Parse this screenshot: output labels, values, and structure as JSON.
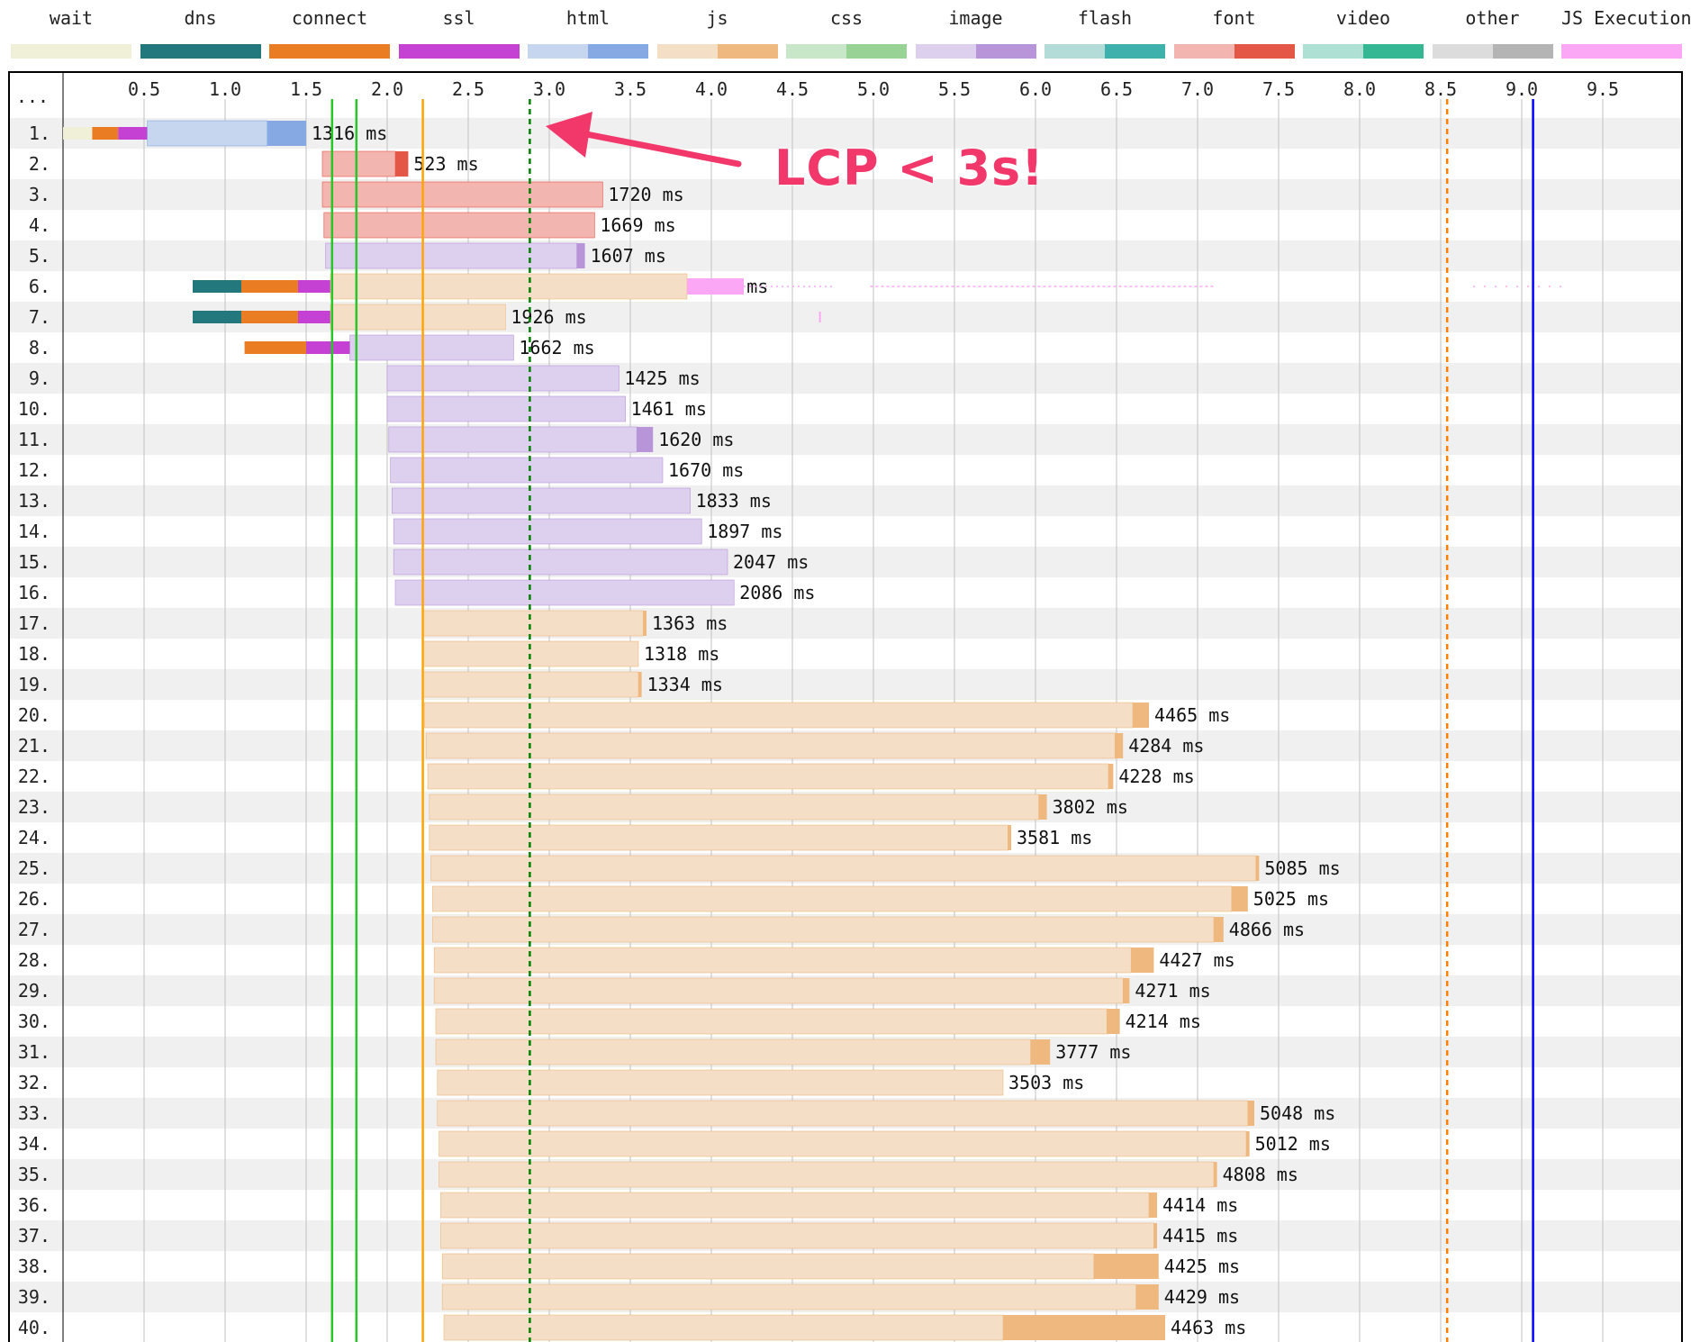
{
  "legend": [
    {
      "name": "wait",
      "colors": [
        "#f0efd8",
        "#f0efd8"
      ]
    },
    {
      "name": "dns",
      "colors": [
        "#23787e",
        "#23787e"
      ]
    },
    {
      "name": "connect",
      "colors": [
        "#ea7d24",
        "#ea7d24"
      ]
    },
    {
      "name": "ssl",
      "colors": [
        "#c441d4",
        "#c441d4"
      ]
    },
    {
      "name": "html",
      "colors": [
        "#c6d6ee",
        "#86a9e4"
      ]
    },
    {
      "name": "js",
      "colors": [
        "#f4dec6",
        "#eeb87e"
      ]
    },
    {
      "name": "css",
      "colors": [
        "#c8e7c8",
        "#98d295"
      ]
    },
    {
      "name": "image",
      "colors": [
        "#ddd0ef",
        "#b795d8"
      ]
    },
    {
      "name": "flash",
      "colors": [
        "#b3dcd9",
        "#3fb1ac"
      ]
    },
    {
      "name": "font",
      "colors": [
        "#f2b5b0",
        "#e45747"
      ]
    },
    {
      "name": "video",
      "colors": [
        "#aee0d4",
        "#35b794"
      ]
    },
    {
      "name": "other",
      "colors": [
        "#dcdcdc",
        "#b4b4b4"
      ]
    },
    {
      "name": "JS Execution",
      "colors": [
        "#fca6f6",
        "#fca6f6"
      ]
    }
  ],
  "annotation": {
    "text": "LCP < 3s!",
    "color": "#f2386b"
  },
  "chart_data": {
    "type": "waterfall",
    "x_unit": "s",
    "xlim": [
      0,
      10
    ],
    "x_ticks": [
      "0.5",
      "1.0",
      "1.5",
      "2.0",
      "2.5",
      "3.0",
      "3.5",
      "4.0",
      "4.5",
      "5.0",
      "5.5",
      "6.0",
      "6.5",
      "7.0",
      "7.5",
      "8.0",
      "8.5",
      "9.0",
      "9.5"
    ],
    "header_label": "...",
    "grid": true,
    "markers": [
      {
        "time": 1.66,
        "color": "#28c728",
        "style": "solid"
      },
      {
        "time": 1.81,
        "color": "#28c728",
        "style": "solid"
      },
      {
        "time": 2.22,
        "color": "#ffa500",
        "style": "solid"
      },
      {
        "time": 2.88,
        "color": "#008000",
        "style": "dashed"
      },
      {
        "time": 8.54,
        "color": "#ff8000",
        "style": "dashed"
      },
      {
        "time": 9.07,
        "color": "#0000ff",
        "style": "solid"
      }
    ],
    "requests": [
      {
        "row": "1.",
        "type": "html",
        "start": 0.0,
        "phases": {
          "wait": 0.18,
          "connect": 0.16,
          "ssl": 0.18
        },
        "dl": 0.24,
        "end": 1.5,
        "label": "1316 ms"
      },
      {
        "row": "2.",
        "type": "font",
        "start": 1.6,
        "end": 2.13,
        "dl": 0.08,
        "label": "523 ms"
      },
      {
        "row": "3.",
        "type": "font",
        "start": 1.6,
        "end": 3.33,
        "label": "1720 ms"
      },
      {
        "row": "4.",
        "type": "font",
        "start": 1.61,
        "end": 3.28,
        "label": "1669 ms"
      },
      {
        "row": "5.",
        "type": "image",
        "start": 1.62,
        "end": 3.22,
        "dl": 0.05,
        "label": "1607 ms"
      },
      {
        "row": "6.",
        "type": "js",
        "start": 0.8,
        "phases": {
          "dns": 0.3,
          "connect": 0.35,
          "ssl": 0.2
        },
        "end": 3.85,
        "label": "3001 ms"
      },
      {
        "row": "7.",
        "type": "js",
        "start": 0.8,
        "phases": {
          "dns": 0.3,
          "connect": 0.35,
          "ssl": 0.2
        },
        "end": 2.73,
        "label": "1926 ms"
      },
      {
        "row": "8.",
        "type": "image",
        "start": 1.12,
        "phases": {
          "connect": 0.38,
          "ssl": 0.27
        },
        "end": 2.78,
        "label": "1662 ms"
      },
      {
        "row": "9.",
        "type": "image",
        "start": 2.0,
        "end": 3.43,
        "label": "1425 ms"
      },
      {
        "row": "10.",
        "type": "image",
        "start": 2.0,
        "end": 3.47,
        "label": "1461 ms"
      },
      {
        "row": "11.",
        "type": "image",
        "start": 2.01,
        "end": 3.64,
        "dl": 0.1,
        "label": "1620 ms"
      },
      {
        "row": "12.",
        "type": "image",
        "start": 2.02,
        "end": 3.7,
        "label": "1670 ms"
      },
      {
        "row": "13.",
        "type": "image",
        "start": 2.03,
        "end": 3.87,
        "label": "1833 ms"
      },
      {
        "row": "14.",
        "type": "image",
        "start": 2.04,
        "end": 3.94,
        "label": "1897 ms"
      },
      {
        "row": "15.",
        "type": "image",
        "start": 2.04,
        "end": 4.1,
        "label": "2047 ms"
      },
      {
        "row": "16.",
        "type": "image",
        "start": 2.05,
        "end": 4.14,
        "label": "2086 ms"
      },
      {
        "row": "17.",
        "type": "js",
        "start": 2.22,
        "end": 3.6,
        "dl": 0.02,
        "label": "1363 ms"
      },
      {
        "row": "18.",
        "type": "js",
        "start": 2.22,
        "end": 3.55,
        "label": "1318 ms"
      },
      {
        "row": "19.",
        "type": "js",
        "start": 2.22,
        "end": 3.57,
        "dl": 0.02,
        "label": "1334 ms"
      },
      {
        "row": "20.",
        "type": "js",
        "start": 2.23,
        "end": 6.7,
        "dl": 0.1,
        "label": "4465 ms"
      },
      {
        "row": "21.",
        "type": "js",
        "start": 2.24,
        "end": 6.54,
        "dl": 0.05,
        "label": "4284 ms"
      },
      {
        "row": "22.",
        "type": "js",
        "start": 2.25,
        "end": 6.48,
        "dl": 0.03,
        "label": "4228 ms"
      },
      {
        "row": "23.",
        "type": "js",
        "start": 2.26,
        "end": 6.07,
        "dl": 0.05,
        "label": "3802 ms"
      },
      {
        "row": "24.",
        "type": "js",
        "start": 2.26,
        "end": 5.85,
        "dl": 0.02,
        "label": "3581 ms"
      },
      {
        "row": "25.",
        "type": "js",
        "start": 2.27,
        "end": 7.38,
        "dl": 0.02,
        "label": "5085 ms"
      },
      {
        "row": "26.",
        "type": "js",
        "start": 2.28,
        "end": 7.31,
        "dl": 0.1,
        "label": "5025 ms"
      },
      {
        "row": "27.",
        "type": "js",
        "start": 2.28,
        "end": 7.16,
        "dl": 0.06,
        "label": "4866 ms"
      },
      {
        "row": "28.",
        "type": "js",
        "start": 2.29,
        "end": 6.73,
        "dl": 0.14,
        "label": "4427 ms"
      },
      {
        "row": "29.",
        "type": "js",
        "start": 2.29,
        "end": 6.58,
        "dl": 0.04,
        "label": "4271 ms"
      },
      {
        "row": "30.",
        "type": "js",
        "start": 2.3,
        "end": 6.52,
        "dl": 0.08,
        "label": "4214 ms"
      },
      {
        "row": "31.",
        "type": "js",
        "start": 2.3,
        "end": 6.09,
        "dl": 0.12,
        "label": "3777 ms"
      },
      {
        "row": "32.",
        "type": "js",
        "start": 2.31,
        "end": 5.8,
        "label": "3503 ms"
      },
      {
        "row": "33.",
        "type": "js",
        "start": 2.31,
        "end": 7.35,
        "dl": 0.04,
        "label": "5048 ms"
      },
      {
        "row": "34.",
        "type": "js",
        "start": 2.32,
        "end": 7.32,
        "dl": 0.02,
        "label": "5012 ms"
      },
      {
        "row": "35.",
        "type": "js",
        "start": 2.32,
        "end": 7.12,
        "dl": 0.02,
        "label": "4808 ms"
      },
      {
        "row": "36.",
        "type": "js",
        "start": 2.33,
        "end": 6.75,
        "dl": 0.05,
        "label": "4414 ms"
      },
      {
        "row": "37.",
        "type": "js",
        "start": 2.33,
        "end": 6.75,
        "dl": 0.02,
        "label": "4415 ms"
      },
      {
        "row": "38.",
        "type": "js",
        "start": 2.34,
        "end": 6.76,
        "dl": 0.4,
        "label": "4425 ms"
      },
      {
        "row": "39.",
        "type": "js",
        "start": 2.34,
        "end": 6.76,
        "dl": 0.14,
        "label": "4429 ms"
      },
      {
        "row": "40.",
        "type": "js",
        "start": 2.35,
        "end": 6.8,
        "dl": 1.0,
        "label": "4463 ms"
      }
    ]
  }
}
